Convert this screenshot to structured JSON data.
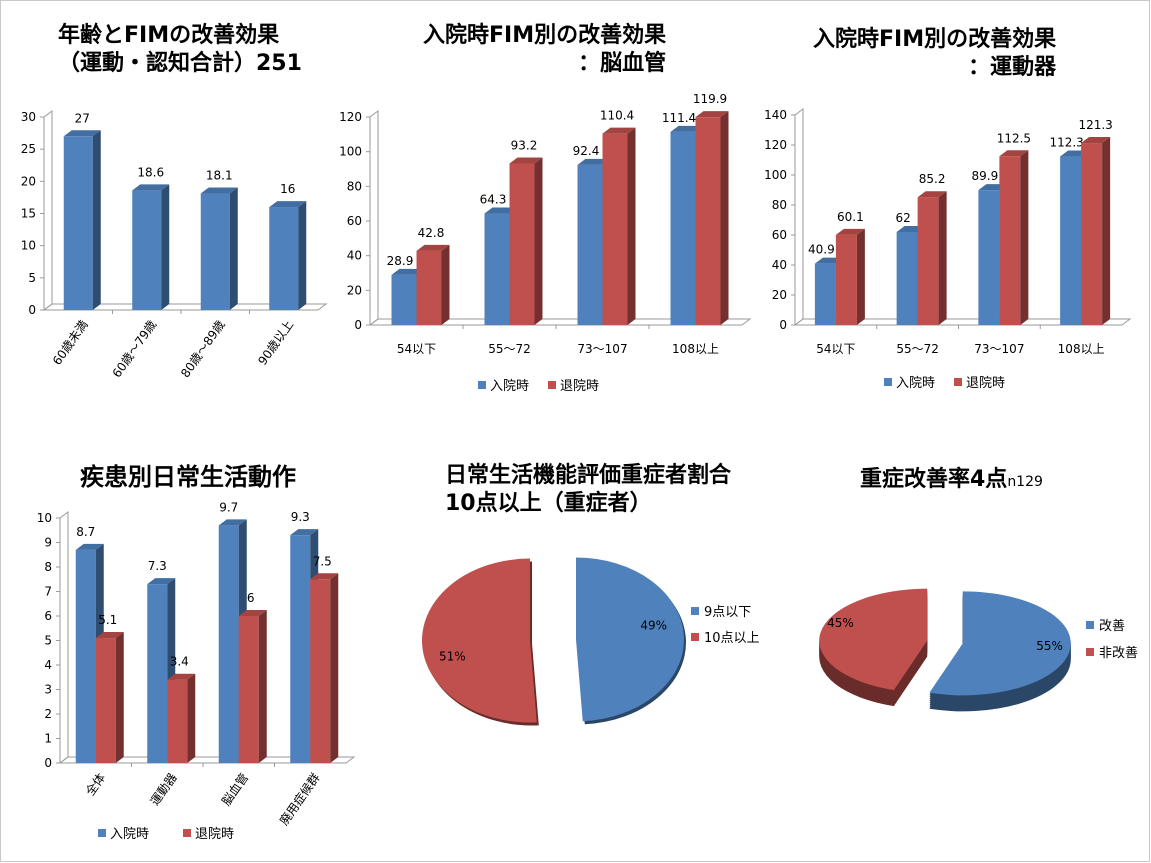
{
  "chart_data": [
    {
      "type": "bar",
      "title": "年齢とFIMの改善効果\n（運動・認知合計）251",
      "categories": [
        "60歳未満",
        "60歳～79歳",
        "80歳～89歳",
        "90歳以上"
      ],
      "series": [
        {
          "values": [
            27,
            18.6,
            18.1,
            16
          ],
          "color": "#4f81bd"
        }
      ],
      "ylim": [
        0,
        30
      ],
      "yticks": [
        0,
        5,
        10,
        15,
        20,
        25,
        30
      ],
      "data_labels": [
        "27",
        "18.6",
        "18.1",
        "16"
      ],
      "grid": false,
      "legend": "none",
      "style": "3d"
    },
    {
      "type": "bar",
      "title": "入院時FIM別の改善効果\n：脳血管",
      "categories": [
        "54以下",
        "55～72",
        "73～107",
        "108以上"
      ],
      "series": [
        {
          "name": "入院時",
          "values": [
            28.9,
            64.3,
            92.4,
            111.4
          ],
          "color": "#4f81bd"
        },
        {
          "name": "退院時",
          "values": [
            42.8,
            93.2,
            110.4,
            119.9
          ],
          "color": "#c0504d"
        }
      ],
      "ylim": [
        0,
        120
      ],
      "yticks": [
        0,
        20,
        40,
        60,
        80,
        100,
        120
      ],
      "grid": false,
      "legend": "bottom",
      "style": "3d"
    },
    {
      "type": "bar",
      "title": "入院時FIM別の改善効果\n：運動器",
      "categories": [
        "54以下",
        "55～72",
        "73～107",
        "108以上"
      ],
      "series": [
        {
          "name": "入院時",
          "values": [
            40.9,
            62,
            89.9,
            112.3
          ],
          "color": "#4f81bd"
        },
        {
          "name": "退院時",
          "values": [
            60.1,
            85.2,
            112.5,
            121.3
          ],
          "color": "#c0504d"
        }
      ],
      "ylim": [
        0,
        140
      ],
      "yticks": [
        0,
        20,
        40,
        60,
        80,
        100,
        120,
        140
      ],
      "grid": false,
      "legend": "bottom",
      "style": "3d"
    },
    {
      "type": "bar",
      "title": "疾患別日常生活動作",
      "categories": [
        "全体",
        "運動器",
        "脳血管",
        "廃用症候群"
      ],
      "series": [
        {
          "name": "入院時",
          "values": [
            8.7,
            7.3,
            9.7,
            9.3
          ],
          "color": "#4f81bd"
        },
        {
          "name": "退院時",
          "values": [
            5.1,
            3.4,
            6,
            7.5
          ],
          "color": "#c0504d"
        }
      ],
      "ylim": [
        0,
        10
      ],
      "yticks": [
        0,
        1,
        2,
        3,
        4,
        5,
        6,
        7,
        8,
        9,
        10
      ],
      "grid": false,
      "legend": "bottom",
      "style": "3d"
    },
    {
      "type": "pie",
      "title": "日常生活機能評価重症者割合\n10点以上（重症者）",
      "slices": [
        {
          "label": "9点以下",
          "value": 49,
          "text": "49%",
          "color": "#4f81bd"
        },
        {
          "label": "10点以上",
          "value": 51,
          "text": "51%",
          "color": "#c0504d"
        }
      ],
      "legend": "right",
      "style": "exploded"
    },
    {
      "type": "pie",
      "title": "重症改善率4点",
      "title_suffix": "n129",
      "slices": [
        {
          "label": "改善",
          "value": 55,
          "text": "55%",
          "color": "#4f81bd"
        },
        {
          "label": "非改善",
          "value": 45,
          "text": "45%",
          "color": "#c0504d"
        }
      ],
      "legend": "right",
      "style": "3d-exploded"
    }
  ]
}
